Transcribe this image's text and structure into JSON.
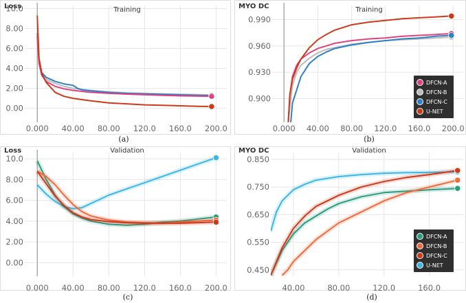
{
  "chart_data": [
    {
      "type": "line",
      "ylabel": "Loss",
      "title": "Training",
      "caption": "(a)",
      "xlim": [
        -14,
        212
      ],
      "ylim": [
        -1.4,
        10.3
      ],
      "xticks": [
        0,
        40,
        80,
        120,
        160,
        200
      ],
      "xtick_labels": [
        "0.000",
        "40.00",
        "80.00",
        "120.0",
        "160.0",
        "200.0"
      ],
      "yticks": [
        0,
        2,
        4,
        6,
        8,
        10
      ],
      "ytick_labels": [
        "0.00",
        "2.00",
        "4.00",
        "6.00",
        "8.00",
        "10.0"
      ],
      "legend": null,
      "series": [
        {
          "name": "DFCN-B",
          "color": "#bbbbbb",
          "x": [
            0,
            2,
            5,
            10,
            20,
            30,
            40,
            50,
            60,
            80,
            100,
            120,
            140,
            160,
            180,
            195
          ],
          "y": [
            7.8,
            5.0,
            3.6,
            2.9,
            2.5,
            2.2,
            2.0,
            1.9,
            1.8,
            1.65,
            1.55,
            1.5,
            1.45,
            1.4,
            1.38,
            1.35
          ]
        },
        {
          "name": "DFCN-C",
          "color": "#2e7fc4",
          "x": [
            0,
            2,
            5,
            10,
            20,
            30,
            40,
            45,
            50,
            60,
            80,
            100,
            120,
            140,
            160,
            180,
            195
          ],
          "y": [
            7.5,
            4.8,
            3.6,
            3.1,
            2.7,
            2.45,
            2.3,
            2.0,
            1.85,
            1.75,
            1.6,
            1.5,
            1.45,
            1.4,
            1.35,
            1.3,
            1.28
          ]
        },
        {
          "name": "DFCN-A",
          "color": "#e0427f",
          "x": [
            0,
            2,
            5,
            10,
            20,
            30,
            40,
            50,
            60,
            80,
            100,
            120,
            140,
            160,
            180,
            195
          ],
          "y": [
            7.2,
            4.5,
            3.3,
            2.7,
            2.2,
            1.95,
            1.8,
            1.7,
            1.6,
            1.5,
            1.42,
            1.36,
            1.3,
            1.25,
            1.22,
            1.2
          ]
        },
        {
          "name": "U-NET",
          "color": "#cc3a1a",
          "x": [
            0,
            2,
            5,
            10,
            20,
            30,
            40,
            60,
            80,
            100,
            120,
            140,
            160,
            180,
            195
          ],
          "y": [
            9.3,
            5.0,
            3.5,
            2.6,
            1.6,
            1.2,
            1.0,
            0.75,
            0.55,
            0.45,
            0.35,
            0.3,
            0.25,
            0.2,
            0.18
          ]
        }
      ]
    },
    {
      "type": "line",
      "ylabel": "MYO DC",
      "title": "Training",
      "caption": "(b)",
      "xlim": [
        -14,
        212
      ],
      "ylim": [
        0.873,
        1.006
      ],
      "xticks": [
        0,
        40,
        80,
        120,
        160,
        200
      ],
      "xtick_labels": [
        "0.000",
        "40.00",
        "80.00",
        "120.0",
        "160.0",
        "200.0"
      ],
      "yticks": [
        0.9,
        0.93,
        0.96,
        0.99
      ],
      "ytick_labels": [
        "0.900",
        "0.930",
        "0.960",
        "0.990"
      ],
      "legend": {
        "position": "bottom-right",
        "entries": [
          "DFCN-A",
          "DFCN-B",
          "DFCN-C",
          "U-NET"
        ]
      },
      "series": [
        {
          "name": "DFCN-A",
          "color": "#e0427f",
          "x": [
            5,
            7,
            10,
            15,
            20,
            30,
            40,
            50,
            60,
            80,
            100,
            120,
            140,
            160,
            180,
            198
          ],
          "y": [
            0.873,
            0.905,
            0.925,
            0.938,
            0.945,
            0.952,
            0.957,
            0.96,
            0.963,
            0.966,
            0.968,
            0.969,
            0.971,
            0.972,
            0.973,
            0.974
          ]
        },
        {
          "name": "DFCN-B",
          "color": "#bbbbbb",
          "x": [
            5,
            8,
            10,
            15,
            20,
            30,
            40,
            50,
            60,
            80,
            100,
            120,
            140,
            160,
            180,
            198
          ],
          "y": [
            0.873,
            0.9,
            0.915,
            0.93,
            0.938,
            0.946,
            0.952,
            0.956,
            0.958,
            0.962,
            0.964,
            0.966,
            0.967,
            0.968,
            0.969,
            0.97
          ]
        },
        {
          "name": "DFCN-C",
          "color": "#2e7fc4",
          "x": [
            8,
            10,
            15,
            20,
            30,
            40,
            50,
            60,
            80,
            100,
            120,
            140,
            160,
            180,
            198
          ],
          "y": [
            0.873,
            0.895,
            0.91,
            0.925,
            0.94,
            0.948,
            0.953,
            0.957,
            0.961,
            0.964,
            0.966,
            0.968,
            0.969,
            0.971,
            0.972
          ]
        },
        {
          "name": "U-NET",
          "color": "#cc3a1a",
          "x": [
            5,
            7,
            10,
            15,
            20,
            30,
            40,
            50,
            60,
            80,
            100,
            120,
            140,
            160,
            180,
            198
          ],
          "y": [
            0.873,
            0.905,
            0.922,
            0.935,
            0.945,
            0.958,
            0.967,
            0.973,
            0.978,
            0.984,
            0.987,
            0.989,
            0.991,
            0.992,
            0.993,
            0.994
          ]
        }
      ]
    },
    {
      "type": "line",
      "ylabel": "Loss",
      "title": "Validation",
      "caption": "(c)",
      "xlim": [
        -14,
        212
      ],
      "ylim": [
        -1.3,
        10.6
      ],
      "xticks": [
        0,
        40,
        80,
        120,
        160,
        200
      ],
      "xtick_labels": [
        "0.000",
        "40.00",
        "80.00",
        "120.0",
        "160.0",
        "200.0"
      ],
      "yticks": [
        0,
        2,
        4,
        6,
        8,
        10
      ],
      "ytick_labels": [
        "0.00",
        "2.00",
        "4.00",
        "6.00",
        "8.00",
        "10.0"
      ],
      "legend": null,
      "series": [
        {
          "name": "U-NET",
          "color": "#3db6e5",
          "x": [
            0,
            10,
            20,
            30,
            40,
            50,
            60,
            70,
            80,
            100,
            120,
            140,
            160,
            180,
            200
          ],
          "y": [
            7.5,
            6.6,
            5.9,
            5.4,
            5.2,
            5.3,
            5.7,
            6.1,
            6.5,
            7.1,
            7.7,
            8.3,
            8.9,
            9.5,
            10.1
          ]
        },
        {
          "name": "DFCN-A",
          "color": "#2b9c7f",
          "x": [
            0,
            10,
            20,
            30,
            40,
            50,
            60,
            80,
            100,
            120,
            140,
            160,
            180,
            200
          ],
          "y": [
            9.8,
            8.0,
            6.5,
            5.4,
            4.7,
            4.3,
            4.0,
            3.7,
            3.6,
            3.7,
            3.9,
            4.0,
            4.2,
            4.4
          ]
        },
        {
          "name": "DFCN-B",
          "color": "#f06a3c",
          "x": [
            0,
            10,
            20,
            30,
            40,
            50,
            60,
            80,
            100,
            120,
            140,
            160,
            180,
            200
          ],
          "y": [
            8.8,
            8.3,
            7.5,
            6.5,
            5.6,
            4.9,
            4.5,
            4.1,
            3.9,
            3.85,
            3.8,
            3.9,
            4.0,
            4.1
          ]
        },
        {
          "name": "DFCN-C",
          "color": "#cc3a1a",
          "x": [
            0,
            10,
            20,
            30,
            40,
            50,
            60,
            80,
            100,
            120,
            140,
            160,
            180,
            200
          ],
          "y": [
            8.8,
            7.6,
            6.4,
            5.5,
            4.8,
            4.4,
            4.15,
            3.95,
            3.85,
            3.8,
            3.8,
            3.8,
            3.85,
            3.9
          ]
        }
      ]
    },
    {
      "type": "line",
      "ylabel": "MYO DC",
      "title": "Validation",
      "caption": "(d)",
      "xlim": [
        20,
        190
      ],
      "ylim": [
        0.427,
        0.875
      ],
      "xticks": [
        40,
        80,
        120,
        160
      ],
      "xtick_labels": [
        "40.00",
        "80.00",
        "120.0",
        "160.0"
      ],
      "yticks": [
        0.45,
        0.55,
        0.65,
        0.75,
        0.85
      ],
      "ytick_labels": [
        "0.450",
        "0.550",
        "0.650",
        "0.750",
        "0.850"
      ],
      "legend": {
        "position": "bottom-right",
        "entries": [
          "DFCN-A",
          "DFCN-B",
          "DFCN-C",
          "U-NET"
        ]
      },
      "series": [
        {
          "name": "U-NET",
          "color": "#3db6e5",
          "x": [
            20,
            25,
            30,
            40,
            50,
            60,
            80,
            100,
            120,
            140,
            160,
            185
          ],
          "y": [
            0.59,
            0.66,
            0.7,
            0.74,
            0.76,
            0.775,
            0.788,
            0.795,
            0.8,
            0.802,
            0.803,
            0.805
          ]
        },
        {
          "name": "DFCN-A",
          "color": "#2b9c7f",
          "x": [
            20,
            30,
            40,
            50,
            60,
            70,
            80,
            100,
            120,
            140,
            160,
            185
          ],
          "y": [
            0.43,
            0.52,
            0.58,
            0.62,
            0.645,
            0.67,
            0.69,
            0.715,
            0.73,
            0.735,
            0.74,
            0.745
          ]
        },
        {
          "name": "DFCN-B",
          "color": "#f06a3c",
          "x": [
            30,
            35,
            40,
            50,
            60,
            80,
            100,
            120,
            140,
            160,
            185
          ],
          "y": [
            0.43,
            0.45,
            0.48,
            0.52,
            0.56,
            0.62,
            0.66,
            0.7,
            0.73,
            0.75,
            0.775
          ]
        },
        {
          "name": "DFCN-C",
          "color": "#cc3a1a",
          "x": [
            20,
            30,
            40,
            50,
            60,
            80,
            100,
            120,
            140,
            160,
            185
          ],
          "y": [
            0.43,
            0.53,
            0.6,
            0.645,
            0.68,
            0.72,
            0.75,
            0.77,
            0.785,
            0.795,
            0.81
          ]
        }
      ]
    }
  ]
}
